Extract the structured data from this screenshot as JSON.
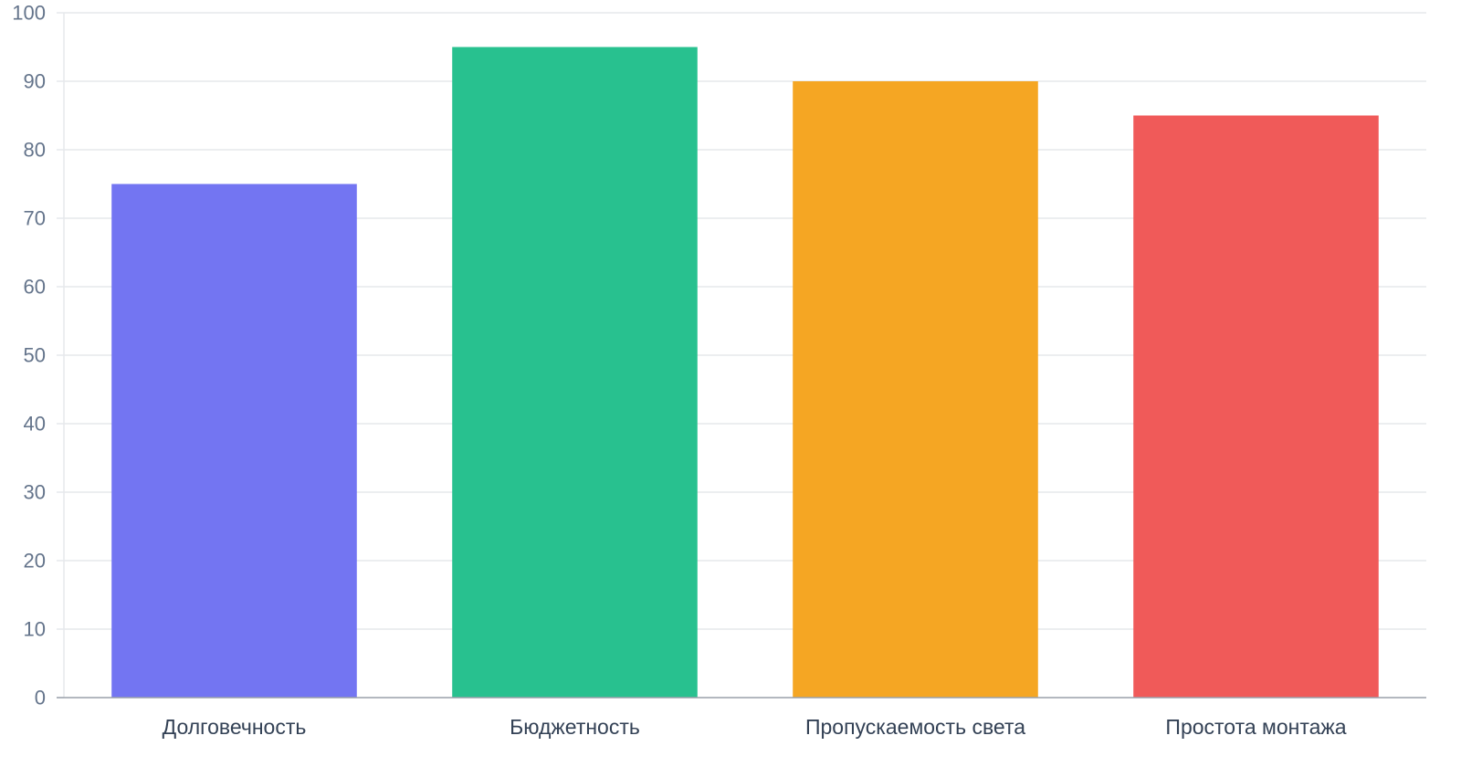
{
  "chart_data": {
    "type": "bar",
    "categories": [
      "Долговечность",
      "Бюджетность",
      "Пропускаемость света",
      "Простота монтажа"
    ],
    "values": [
      75,
      95,
      90,
      85
    ],
    "colors": [
      "#7375f2",
      "#28c18f",
      "#f5a623",
      "#f05a59"
    ],
    "title": "",
    "xlabel": "",
    "ylabel": "",
    "ylim": [
      0,
      100
    ],
    "yticks": [
      "0",
      "10",
      "20",
      "30",
      "40",
      "50",
      "60",
      "70",
      "80",
      "90",
      "100"
    ],
    "grid": true,
    "legend": "none"
  }
}
